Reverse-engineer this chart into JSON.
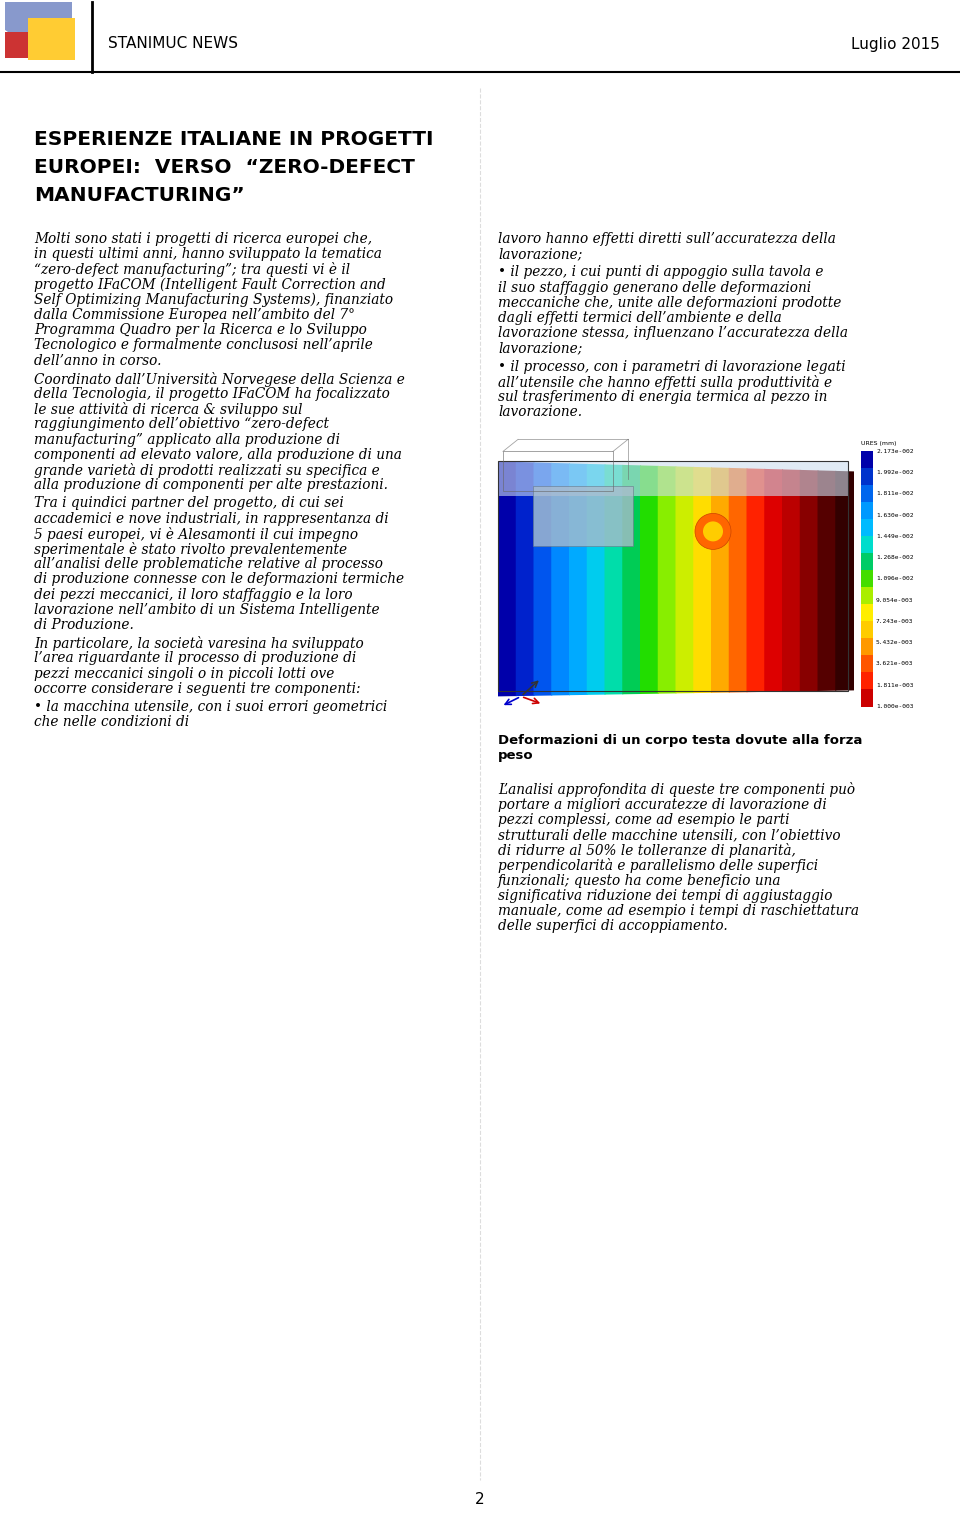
{
  "header_title": "STANIMUC NEWS",
  "header_date": "Luglio 2015",
  "page_number": "2",
  "bg_color": "#ffffff",
  "article_title_lines": [
    "ESPERIENZE ITALIANE IN PROGETTI",
    "EUROPEI:  VERSO  “ZERO-DEFECT",
    "MANUFACTURING”"
  ],
  "left_paragraphs": [
    "Molti sono stati i progetti di ricerca europei che, in questi ultimi anni, hanno sviluppato la tematica “zero-defect manufacturing”; tra questi vi è il progetto IFaCOM (Intelligent Fault Correction and Self Optimizing Manufacturing Systems), finanziato dalla Commissione Europea nell’ambito del 7° Programma Quadro per la Ricerca e lo Sviluppo Tecnologico e formalmente conclusosi nell’aprile dell’anno in corso.",
    "Coordinato dall’Università Norvegese della Scienza e della Tecnologia, il progetto IFaCOM ha focalizzato le sue attività di ricerca & sviluppo sul raggiungimento dell’obiettivo “zero-defect manufacturing” applicato alla produzione di componenti ad elevato valore, alla produzione di una grande varietà di prodotti realizzati su specifica e alla produzione di componenti per alte prestazioni.",
    "Tra i quindici partner del progetto, di cui sei accademici e nove industriali, in rappresentanza di 5 paesi europei, vi è Alesamonti il cui impegno sperimentale è stato rivolto prevalentemente all’analisi delle problematiche relative al processo di produzione connesse con le deformazioni termiche dei pezzi meccanici, il loro staffaggio e la loro lavorazione nell’ambito di un Sistema Intelligente di Produzione.",
    "In particolare, la società varesina ha sviluppato l’area riguardante il processo di produzione di pezzi meccanici singoli o in piccoli lotti ove occorre considerare i seguenti tre componenti:",
    "•  la macchina utensile, con i suoi errori geometrici che nelle condizioni di"
  ],
  "right_top_paragraphs": [
    "lavoro hanno effetti diretti sull’accuratezza della lavorazione;",
    "•  il pezzo, i cui punti di appoggio sulla tavola e il suo staffaggio generano delle deformazioni meccaniche che, unite alle deformazioni prodotte dagli effetti termici dell’ambiente e della lavorazione stessa, influenzano l’accuratezza della lavorazione;",
    "•  il processo, con i parametri di lavorazione legati all’utensile che hanno effetti sulla produttività e sul trasferimento di energia termica al pezzo in lavorazione."
  ],
  "image_caption_lines": [
    "Deformazioni di un corpo testa dovute alla forza",
    "peso"
  ],
  "right_bottom_paragraph": "L’analisi approfondita di queste tre componenti può portare a migliori accuratezze di lavorazione di pezzi complessi, come ad esempio le parti strutturali delle macchine utensili, con l’obiettivo di ridurre al 50% le tolleranze di planarità, perpendicolarità e parallelismo delle superfici funzionali; questo ha come beneficio una significativa riduzione dei tempi di aggiustaggio manuale, come ad esempio i tempi di raschiettatura delle superfici di accoppiamento.",
  "logo_blue": "#8899cc",
  "logo_red": "#cc3333",
  "logo_yellow": "#ffcc33",
  "fea_colors": [
    "#0000aa",
    "#0033cc",
    "#0066ee",
    "#0099ff",
    "#00bbff",
    "#00ddcc",
    "#00cc66",
    "#44dd00",
    "#aaee00",
    "#ffee00",
    "#ffcc00",
    "#ff9900",
    "#ff5500",
    "#ff2200",
    "#cc0000"
  ],
  "colorbar_labels": [
    "2.173e-002",
    "1.992e-002",
    "1.811e-002",
    "1.630e-002",
    "1.449e-002",
    "1.268e-002",
    "1.096e-002",
    "9.054e-003",
    "7.243e-003",
    "5.432e-003",
    "3.621e-003",
    "1.811e-003",
    "1.000e-003"
  ]
}
